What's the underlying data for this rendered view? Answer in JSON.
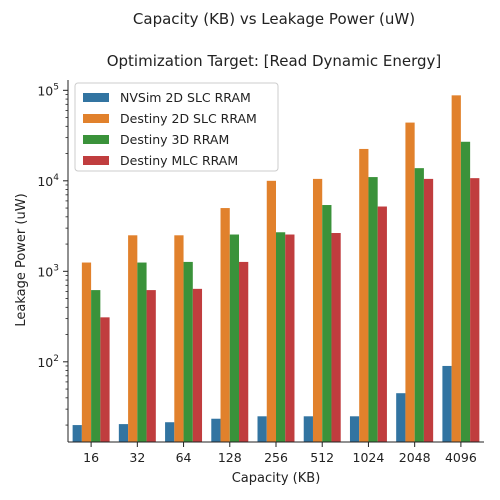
{
  "chart_data": {
    "type": "bar",
    "title": "Capacity (KB) vs Leakage Power (uW)",
    "subtitle": "Optimization Target: [Read Dynamic Energy]",
    "xlabel": "Capacity (KB)",
    "ylabel": "Leakage Power (uW)",
    "yscale": "log",
    "ylim": [
      13,
      130000
    ],
    "yticks": [
      {
        "value": 100,
        "base": "10",
        "exp": "2"
      },
      {
        "value": 1000,
        "base": "10",
        "exp": "3"
      },
      {
        "value": 10000,
        "base": "10",
        "exp": "4"
      },
      {
        "value": 100000,
        "base": "10",
        "exp": "5"
      }
    ],
    "categories": [
      "16",
      "32",
      "64",
      "128",
      "256",
      "512",
      "1024",
      "2048",
      "4096"
    ],
    "series": [
      {
        "name": "NVSim 2D SLC RRAM",
        "color": "#3274a1",
        "values": [
          20,
          20.5,
          21.5,
          23.5,
          25,
          25,
          25,
          45,
          90
        ]
      },
      {
        "name": "Destiny 2D SLC RRAM",
        "color": "#e1812c",
        "values": [
          1250,
          2500,
          2500,
          5000,
          10000,
          10500,
          22500,
          44000,
          88000
        ]
      },
      {
        "name": "Destiny 3D RRAM",
        "color": "#3a923a",
        "values": [
          620,
          1250,
          1270,
          2550,
          2700,
          5400,
          11000,
          13800,
          27000
        ]
      },
      {
        "name": "Destiny MLC RRAM",
        "color": "#c03d3e",
        "values": [
          310,
          620,
          640,
          1270,
          2550,
          2650,
          5200,
          10500,
          10700
        ]
      }
    ],
    "legend_position": "top-left",
    "grid": false
  }
}
